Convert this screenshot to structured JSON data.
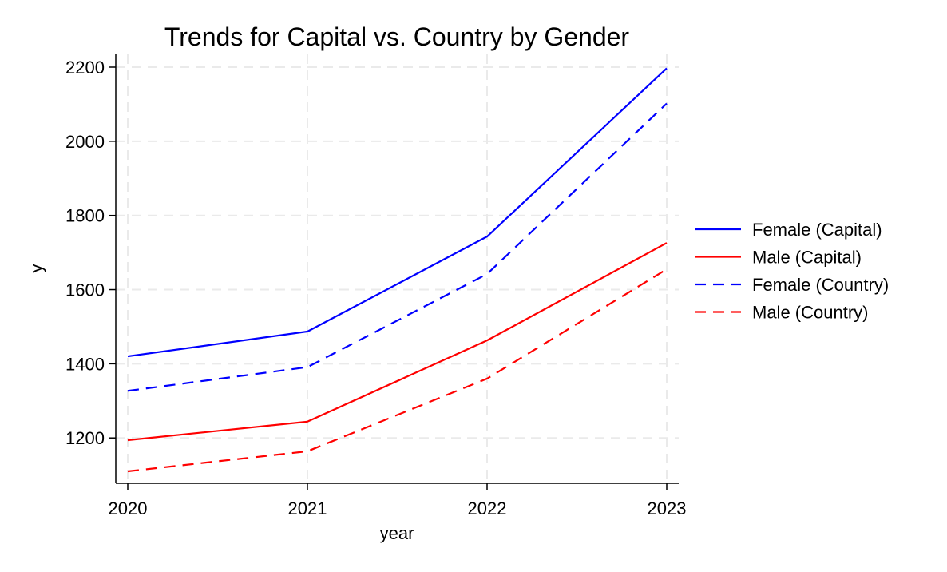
{
  "chart_data": {
    "type": "line",
    "title": "Trends for Capital vs. Country by Gender",
    "xlabel": "year",
    "ylabel": "y",
    "x": [
      2020,
      2021,
      2022,
      2023
    ],
    "x_ticks": [
      "2020",
      "2021",
      "2022",
      "2023"
    ],
    "y_ticks": [
      "1200",
      "1400",
      "1600",
      "1800",
      "2000",
      "2200"
    ],
    "xlim": [
      2020,
      2023
    ],
    "ylim": [
      1080,
      2230
    ],
    "grid": true,
    "legend_position": "right",
    "series": [
      {
        "name": "Female (Capital)",
        "color": "#0000ff",
        "dash": "solid",
        "values": [
          1420,
          1487,
          1743,
          2197
        ]
      },
      {
        "name": "Male (Capital)",
        "color": "#ff0000",
        "dash": "solid",
        "values": [
          1194,
          1244,
          1463,
          1726
        ]
      },
      {
        "name": "Female (Country)",
        "color": "#0000ff",
        "dash": "dashed",
        "values": [
          1327,
          1391,
          1642,
          2102
        ]
      },
      {
        "name": "Male (Country)",
        "color": "#ff0000",
        "dash": "dashed",
        "values": [
          1110,
          1164,
          1360,
          1655
        ]
      }
    ]
  }
}
